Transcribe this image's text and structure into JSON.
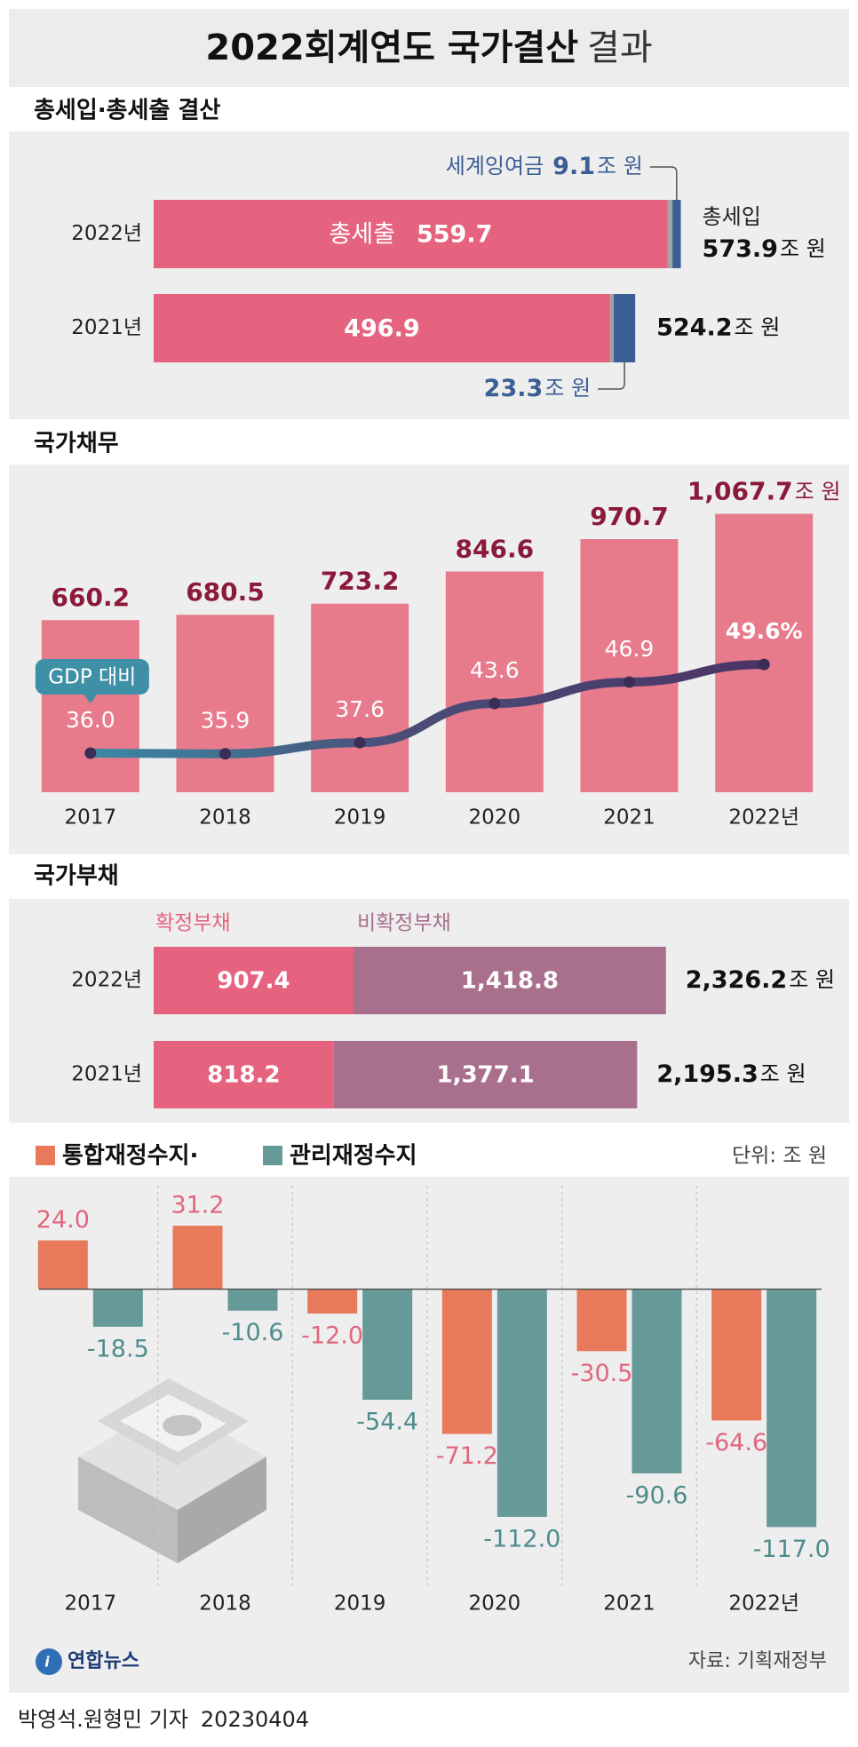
{
  "title": "2022회계연도 국가결산",
  "title_suffix": "결과",
  "chart_data": [
    {
      "type": "revenue-bar",
      "title": "총세입·총세출 결산",
      "unit": "조 원",
      "categories": [
        "2022년",
        "2021년"
      ],
      "series": [
        {
          "name": "총세출",
          "color": "#e5637f",
          "values": [
            559.7,
            496.9
          ]
        },
        {
          "name": "세계잉여금",
          "color": "#3b5f95",
          "values": [
            9.1,
            23.3
          ]
        }
      ],
      "totals": [
        573.9,
        524.2
      ],
      "totals_name": "총세입",
      "other_color": "#a3a3a3",
      "xlim": [
        0,
        760
      ]
    },
    {
      "type": "bar-line",
      "title": "국가채무",
      "unit": "조 원",
      "categories": [
        "2017",
        "2018",
        "2019",
        "2020",
        "2021",
        "2022년"
      ],
      "values": [
        660.2,
        680.5,
        723.2,
        846.6,
        970.7,
        1067.7
      ],
      "value_labels": [
        "660.2",
        "680.5",
        "723.2",
        "846.6",
        "970.7",
        "1,067.7"
      ],
      "color": "#e77b8c",
      "ylim": [
        0,
        1250
      ],
      "line": {
        "name": "GDP 대비",
        "values": [
          36.0,
          35.9,
          37.6,
          43.6,
          46.9,
          49.6
        ],
        "value_labels": [
          "36.0",
          "35.9",
          "37.6",
          "43.6",
          "46.9",
          "49.6%"
        ],
        "axis": "y2"
      },
      "y2lim": [
        30,
        80
      ]
    },
    {
      "type": "stacked-hbar",
      "title": "국가부채",
      "unit": "조 원",
      "categories": [
        "2022년",
        "2021년"
      ],
      "series": [
        {
          "name": "확정부채",
          "color": "#e5637f",
          "values": [
            907.4,
            818.2
          ]
        },
        {
          "name": "비확정부채",
          "color": "#a8708c",
          "values": [
            1418.8,
            1377.1
          ],
          "value_labels": [
            "1,418.8",
            "1,377.1"
          ]
        }
      ],
      "totals": [
        2326.2,
        2195.3
      ],
      "total_labels": [
        "2,326.2",
        "2,195.3"
      ],
      "xlim": [
        0,
        3170
      ]
    },
    {
      "type": "grouped-bar",
      "unit_label": "단위: 조 원",
      "categories": [
        "2017",
        "2018",
        "2019",
        "2020",
        "2021",
        "2022년"
      ],
      "series": [
        {
          "name": "통합재정수지·",
          "color": "#e8795a",
          "label_color": "#e0677e",
          "values": [
            24.0,
            31.2,
            -12.0,
            -71.2,
            -30.5,
            -64.6
          ],
          "value_labels": [
            "24.0",
            "31.2",
            "-12.0",
            "-71.2",
            "-30.5",
            "-64.6"
          ]
        },
        {
          "name": "관리재정수지",
          "color": "#659a98",
          "label_color": "#4f8c8c",
          "values": [
            -18.5,
            -10.6,
            -54.4,
            -112.0,
            -90.6,
            -117.0
          ],
          "value_labels": [
            "-18.5",
            "-10.6",
            "-54.4",
            "-112.0",
            "-90.6",
            "-117.0"
          ]
        }
      ],
      "ylim": [
        -140,
        50
      ]
    }
  ],
  "logo": "연합뉴스",
  "source": "자료: 기획재정부",
  "byline": "박영석.원형민 기자",
  "date": "20230404"
}
